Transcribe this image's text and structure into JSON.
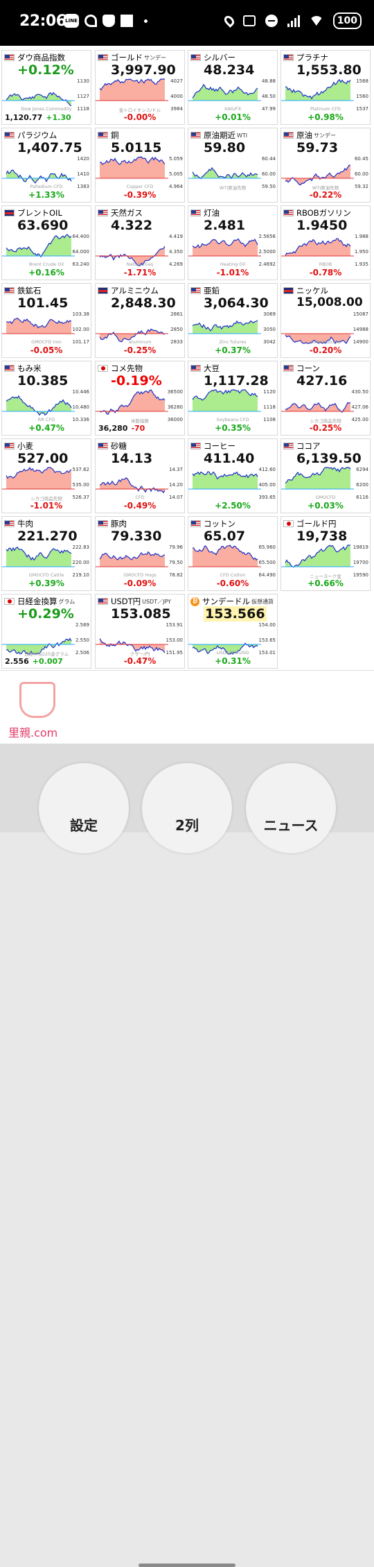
{
  "status": {
    "time": "22:06",
    "battery": "100"
  },
  "tiles": [
    {
      "name": "ダウ商品指数",
      "sub": "",
      "flag": "us",
      "value": "+0.12%",
      "valueColor": "green",
      "change": "",
      "labels": [
        "1130",
        "1127",
        "1118"
      ],
      "watermark": "Dow Jones Commodity",
      "bottomLeft": "1,120.77",
      "bottomDelta": "+1.30",
      "bottomDeltaColor": "pos"
    },
    {
      "name": "ゴールド",
      "sub": "サンデー",
      "flag": "us",
      "value": "3,997.90",
      "valueColor": "",
      "change": "-0.00%",
      "changeColor": "neg",
      "labels": [
        "4027",
        "4000",
        "3984"
      ],
      "watermark": "金トロイオンス/ドル"
    },
    {
      "name": "シルバー",
      "sub": "",
      "flag": "us",
      "value": "48.234",
      "valueColor": "",
      "change": "+0.01%",
      "changeColor": "pos",
      "labels": [
        "48.88",
        "48.50",
        "47.99"
      ],
      "watermark": "XAG/FX"
    },
    {
      "name": "プラチナ",
      "sub": "",
      "flag": "us",
      "value": "1,553.80",
      "valueColor": "",
      "change": "+0.98%",
      "changeColor": "pos",
      "labels": [
        "1568",
        "1560",
        "1537"
      ],
      "watermark": "Platinum CFD"
    },
    {
      "name": "パラジウム",
      "sub": "",
      "flag": "us",
      "value": "1,407.75",
      "valueColor": "",
      "change": "+1.33%",
      "changeColor": "pos",
      "labels": [
        "1420",
        "1410",
        "1383"
      ],
      "watermark": "Palladium CFD"
    },
    {
      "name": "銅",
      "sub": "",
      "flag": "us",
      "value": "5.0115",
      "valueColor": "",
      "change": "-0.39%",
      "changeColor": "neg",
      "labels": [
        "5.059",
        "5.005",
        "4.964"
      ],
      "watermark": "Copper CFD"
    },
    {
      "name": "原油期近",
      "sub": "WTI",
      "flag": "us",
      "value": "59.80",
      "valueColor": "",
      "change": "",
      "labels": [
        "60.44",
        "60.00",
        "59.50"
      ],
      "watermark": "WTI原油先物"
    },
    {
      "name": "原油",
      "sub": "サンデー",
      "flag": "us",
      "value": "59.73",
      "valueColor": "",
      "change": "-0.22%",
      "changeColor": "neg",
      "labels": [
        "60.45",
        "60.00",
        "59.32"
      ],
      "watermark": "WTI原油先物"
    },
    {
      "name": "ブレントOIL",
      "sub": "",
      "flag": "uk",
      "value": "63.690",
      "valueColor": "",
      "change": "+0.16%",
      "changeColor": "pos",
      "labels": [
        "64.400",
        "64.000",
        "63.240"
      ],
      "watermark": "Brent Crude Oil"
    },
    {
      "name": "天然ガス",
      "sub": "",
      "flag": "us",
      "value": "4.322",
      "valueColor": "",
      "change": "-1.71%",
      "changeColor": "neg",
      "labels": [
        "4.419",
        "4.350",
        "4.269"
      ],
      "watermark": "Natural Gas"
    },
    {
      "name": "灯油",
      "sub": "",
      "flag": "us",
      "value": "2.481",
      "valueColor": "",
      "change": "-1.01%",
      "changeColor": "neg",
      "labels": [
        "2.5656",
        "2.5000",
        "2.4692"
      ],
      "watermark": "Heating Oil"
    },
    {
      "name": "RBOBガソリン",
      "sub": "",
      "flag": "us",
      "value": "1.9450",
      "valueColor": "",
      "change": "-0.78%",
      "changeColor": "neg",
      "labels": [
        "1.988",
        "1.950",
        "1.935"
      ],
      "watermark": "RBOB"
    },
    {
      "name": "鉄鉱石",
      "sub": "",
      "flag": "us",
      "value": "101.45",
      "valueColor": "",
      "change": "-0.05%",
      "changeColor": "neg",
      "labels": [
        "103.38",
        "102.00",
        "101.17"
      ],
      "watermark": "GMOCFD Iron"
    },
    {
      "name": "アルミニウム",
      "sub": "",
      "flag": "uk",
      "value": "2,848.30",
      "valueColor": "",
      "change": "-0.25%",
      "changeColor": "neg",
      "labels": [
        "2861",
        "2850",
        "2833"
      ],
      "watermark": "aluminum"
    },
    {
      "name": "亜鉛",
      "sub": "",
      "flag": "us",
      "value": "3,064.30",
      "valueColor": "",
      "change": "+0.37%",
      "changeColor": "pos",
      "labels": [
        "3069",
        "3050",
        "3042"
      ],
      "watermark": "Zinc futures"
    },
    {
      "name": "ニッケル",
      "sub": "",
      "flag": "uk",
      "value": "15,008.00",
      "valueColor": "",
      "change": "-0.20%",
      "changeColor": "neg",
      "labels": [
        "15087",
        "14988",
        "14900"
      ],
      "watermark": "nickel futures"
    },
    {
      "name": "もみ米",
      "sub": "",
      "flag": "us",
      "value": "10.385",
      "valueColor": "",
      "change": "+0.47%",
      "changeColor": "pos",
      "labels": [
        "10.446",
        "10.480",
        "10.336"
      ],
      "watermark": "RR CFD"
    },
    {
      "name": "コメ先物",
      "sub": "",
      "flag": "jp",
      "value": "-0.19%",
      "valueColor": "red",
      "change": "",
      "labels": [
        "36500",
        "36280",
        "36000"
      ],
      "watermark": "米穀指数",
      "bottomLeft": "36,280",
      "bottomDelta": "-70",
      "bottomDeltaColor": "neg"
    },
    {
      "name": "大豆",
      "sub": "",
      "flag": "us",
      "value": "1,117.28",
      "valueColor": "",
      "change": "+0.35%",
      "changeColor": "pos",
      "labels": [
        "1120",
        "1118",
        "1108"
      ],
      "watermark": "Soybeans CFD"
    },
    {
      "name": "コーン",
      "sub": "",
      "flag": "us",
      "value": "427.16",
      "valueColor": "",
      "change": "-0.25%",
      "changeColor": "neg",
      "labels": [
        "430.50",
        "427.06",
        "425.00"
      ],
      "watermark": "シカゴ商品先物"
    },
    {
      "name": "小麦",
      "sub": "",
      "flag": "us",
      "value": "527.00",
      "valueColor": "",
      "change": "-1.01%",
      "changeColor": "neg",
      "labels": [
        "537.62",
        "535.00",
        "526.37"
      ],
      "watermark": "シカゴ商品先物"
    },
    {
      "name": "砂糖",
      "sub": "",
      "flag": "us",
      "value": "14.13",
      "valueColor": "",
      "change": "-0.49%",
      "changeColor": "neg",
      "labels": [
        "14.37",
        "14.20",
        "14.07"
      ],
      "watermark": "CFD"
    },
    {
      "name": "コーヒー",
      "sub": "",
      "flag": "us",
      "value": "411.40",
      "valueColor": "",
      "change": "+2.50%",
      "changeColor": "pos",
      "labels": [
        "412.60",
        "405.00",
        "393.65"
      ],
      "watermark": ""
    },
    {
      "name": "ココア",
      "sub": "",
      "flag": "us",
      "value": "6,139.50",
      "valueColor": "",
      "change": "+0.03%",
      "changeColor": "pos",
      "labels": [
        "6294",
        "6200",
        "6116"
      ],
      "watermark": "GMOCFD"
    },
    {
      "name": "牛肉",
      "sub": "",
      "flag": "us",
      "value": "221.270",
      "valueColor": "",
      "change": "+0.39%",
      "changeColor": "pos",
      "labels": [
        "222.83",
        "220.00",
        "219.10"
      ],
      "watermark": "GMOCFD Cattle"
    },
    {
      "name": "豚肉",
      "sub": "",
      "flag": "us",
      "value": "79.330",
      "valueColor": "",
      "change": "-0.09%",
      "changeColor": "neg",
      "labels": [
        "79.96",
        "79.50",
        "78.82"
      ],
      "watermark": "GMOCFD Hogs"
    },
    {
      "name": "コットン",
      "sub": "",
      "flag": "us",
      "value": "65.07",
      "valueColor": "",
      "change": "-0.60%",
      "changeColor": "neg",
      "labels": [
        "65.960",
        "65.500",
        "64.490"
      ],
      "watermark": "CFD Cotton"
    },
    {
      "name": "ゴールド円",
      "sub": "",
      "flag": "jp",
      "value": "19,738",
      "valueColor": "",
      "change": "+0.66%",
      "changeColor": "pos",
      "labels": [
        "19819",
        "19700",
        "19590"
      ],
      "watermark": "ニューヨーク金"
    },
    {
      "name": "日経金換算",
      "sub": "グラム",
      "flag": "jp",
      "value": "+0.29%",
      "valueColor": "green",
      "change": "",
      "labels": [
        "2.569",
        "2.550",
        "2.506"
      ],
      "watermark": "日経平均225金グラム",
      "bottomLeft": "2.556",
      "bottomDelta": "+0.007",
      "bottomDeltaColor": "pos"
    },
    {
      "name": "USDT円",
      "sub": "USDT／JPY",
      "flag": "us",
      "value": "153.085",
      "valueColor": "",
      "change": "-0.47%",
      "changeColor": "neg",
      "labels": [
        "153.91",
        "153.00",
        "151.95"
      ],
      "watermark": "テザー/円"
    },
    {
      "name": "サンデードル",
      "sub": "仮想通貨",
      "flag": "btc",
      "value": "153.566",
      "valueColor": "hl",
      "change": "+0.31%",
      "changeColor": "pos",
      "labels": [
        "154.00",
        "153.65",
        "153.01"
      ],
      "watermark": "USDT/BTCUSD"
    }
  ],
  "ad": {
    "logo_text": "里親.com"
  },
  "nav": {
    "settings": "設定",
    "columns": "2列",
    "news": "ニュース"
  }
}
